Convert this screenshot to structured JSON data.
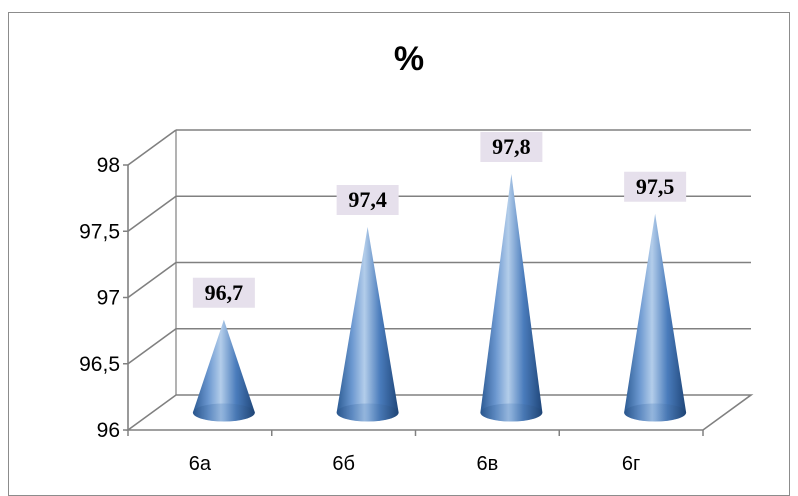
{
  "chart_data": {
    "type": "bar",
    "bar_shape": "cone",
    "title": "%",
    "xlabel": "",
    "ylabel": "",
    "categories": [
      "6а",
      "6б",
      "6в",
      "6г"
    ],
    "values": [
      96.7,
      97.4,
      97.8,
      97.5
    ],
    "data_labels": [
      "96,7",
      "97,4",
      "97,8",
      "97,5"
    ],
    "y_ticks": [
      "96",
      "96,5",
      "97",
      "97,5",
      "98"
    ],
    "ylim": [
      96,
      98
    ],
    "grid": true,
    "legend": "none",
    "colors": {
      "bar": "#4f81bd",
      "gridline": "#808080",
      "label_bg": "#e6e0ec"
    }
  }
}
